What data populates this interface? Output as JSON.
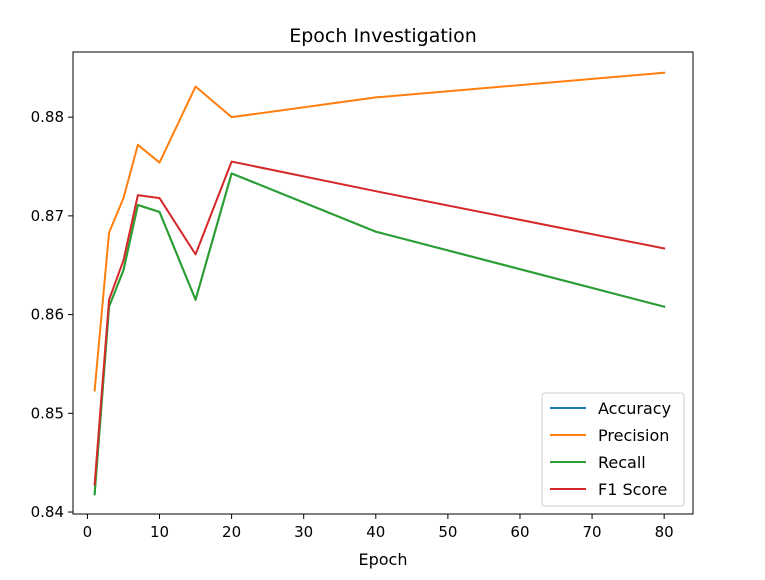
{
  "chart_data": {
    "type": "line",
    "title": "Epoch Investigation",
    "xlabel": "Epoch",
    "ylabel": "",
    "xlim": [
      -2,
      84
    ],
    "ylim": [
      0.8398,
      0.8866
    ],
    "xticks": [
      0,
      10,
      20,
      30,
      40,
      50,
      60,
      70,
      80
    ],
    "xtick_labels": [
      "0",
      "10",
      "20",
      "30",
      "40",
      "50",
      "60",
      "70",
      "80"
    ],
    "yticks": [
      0.84,
      0.85,
      0.86,
      0.87,
      0.88
    ],
    "ytick_labels": [
      "0.84",
      "0.85",
      "0.86",
      "0.87",
      "0.88"
    ],
    "grid": false,
    "legend_position": "lower-right",
    "x": [
      1,
      3,
      5,
      7,
      10,
      15,
      20,
      40,
      80
    ],
    "series": [
      {
        "name": "Accuracy",
        "color": "#1f77b4",
        "values": [
          0.8418,
          0.8608,
          0.8645,
          0.8711,
          0.8704,
          0.8615,
          0.8743,
          0.8684,
          0.8608
        ]
      },
      {
        "name": "Precision",
        "color": "#ff7f0e",
        "values": [
          0.8523,
          0.8683,
          0.8718,
          0.8772,
          0.8754,
          0.8831,
          0.88,
          0.882,
          0.8845
        ]
      },
      {
        "name": "Recall",
        "color": "#2ca02c",
        "values": [
          0.8418,
          0.8608,
          0.8645,
          0.8711,
          0.8704,
          0.8615,
          0.8743,
          0.8684,
          0.8608
        ]
      },
      {
        "name": "F1 Score",
        "color": "#d62728",
        "values": [
          0.8428,
          0.8615,
          0.8655,
          0.8721,
          0.8718,
          0.8661,
          0.8755,
          0.8725,
          0.8667
        ]
      }
    ]
  }
}
